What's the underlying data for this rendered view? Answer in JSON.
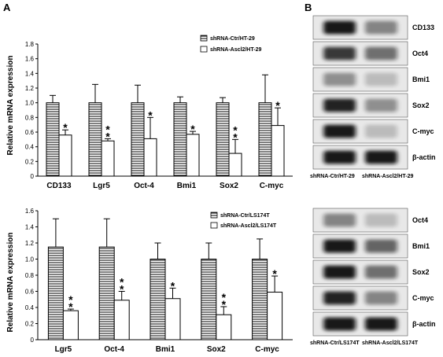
{
  "panels": {
    "a": "A",
    "b": "B"
  },
  "chart_data": [
    {
      "type": "bar",
      "ylabel": "Relative mRNA expression",
      "ylim": [
        0,
        1.8
      ],
      "yticks": [
        "0",
        "0.2",
        "0.4",
        "0.6",
        "0.8",
        "1.0",
        "1.2",
        "1.4",
        "1.6",
        "1.8"
      ],
      "categories": [
        "CD133",
        "Lgr5",
        "Oct-4",
        "Bmi1",
        "Sox2",
        "C-myc"
      ],
      "series": [
        {
          "name": "shRNA-Ctr/HT-29",
          "values": [
            1.0,
            1.0,
            1.0,
            1.0,
            1.0,
            1.0
          ],
          "errors": [
            0.1,
            0.25,
            0.24,
            0.08,
            0.07,
            0.38
          ],
          "fill": "hatched"
        },
        {
          "name": "shRNA-Ascl2/HT-29",
          "values": [
            0.56,
            0.48,
            0.51,
            0.57,
            0.31,
            0.69
          ],
          "errors": [
            0.07,
            0.03,
            0.29,
            0.04,
            0.19,
            0.24
          ],
          "fill": "white"
        }
      ],
      "significance": [
        "*",
        "**",
        "*",
        "*",
        "**",
        "*"
      ],
      "legend_position": "top-right"
    },
    {
      "type": "bar",
      "ylabel": "Relative mRNA expression",
      "ylim": [
        0,
        1.6
      ],
      "yticks": [
        "0",
        "0.2",
        "0.4",
        "0.6",
        "0.8",
        "1.0",
        "1.2",
        "1.4",
        "1.6"
      ],
      "categories": [
        "Lgr5",
        "Oct-4",
        "Bmi1",
        "Sox2",
        "C-myc"
      ],
      "series": [
        {
          "name": "shRNA-Ctr/LS174T",
          "values": [
            1.15,
            1.15,
            1.0,
            1.0,
            1.0
          ],
          "errors": [
            0.35,
            0.35,
            0.2,
            0.2,
            0.25
          ],
          "fill": "hatched"
        },
        {
          "name": "shRNA-Ascl2/LS174T",
          "values": [
            0.36,
            0.49,
            0.51,
            0.31,
            0.59
          ],
          "errors": [
            0.02,
            0.11,
            0.13,
            0.1,
            0.2
          ],
          "fill": "white"
        }
      ],
      "significance": [
        "**",
        "**",
        "*",
        "**",
        "*"
      ],
      "legend_position": "top-right"
    }
  ],
  "blots": [
    {
      "rows": [
        "CD133",
        "Oct4",
        "Bmi1",
        "Sox2",
        "C-myc",
        "β-actin"
      ],
      "lanes": [
        "shRNA-Ctr/HT-29",
        "shRNA-Ascl2/HT-29"
      ],
      "intensity": [
        [
          0.95,
          0.45
        ],
        [
          0.8,
          0.55
        ],
        [
          0.4,
          0.2
        ],
        [
          0.9,
          0.4
        ],
        [
          0.95,
          0.2
        ],
        [
          0.95,
          0.95
        ]
      ]
    },
    {
      "rows": [
        "Oct4",
        "Bmi1",
        "Sox2",
        "C-myc",
        "β-actin"
      ],
      "lanes": [
        "shRNA-Ctr/LS174T",
        "shRNA-Ascl2/LS174T"
      ],
      "intensity": [
        [
          0.45,
          0.2
        ],
        [
          0.95,
          0.6
        ],
        [
          0.95,
          0.55
        ],
        [
          0.9,
          0.45
        ],
        [
          0.95,
          0.95
        ]
      ]
    }
  ],
  "colors": {
    "ink": "#000000",
    "blot_bg": "#e8e8e8",
    "band": "#101010"
  }
}
